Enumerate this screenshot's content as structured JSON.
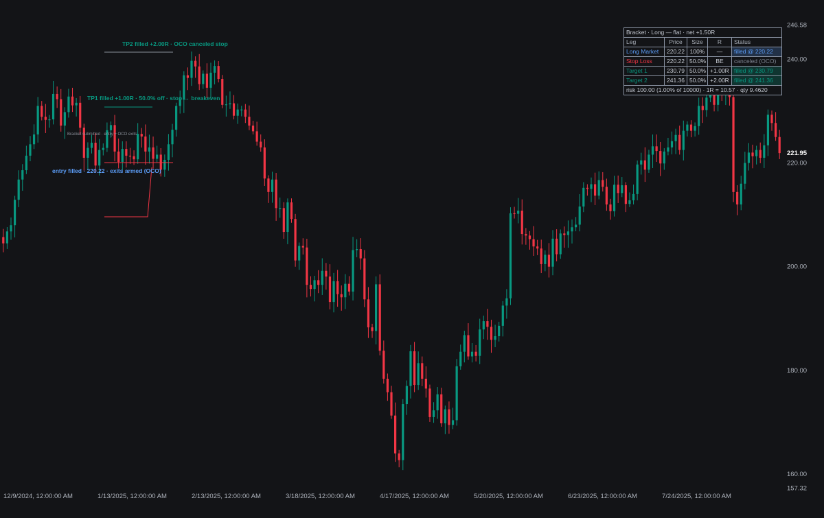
{
  "colors": {
    "background": "#131417",
    "up": "#089981",
    "down": "#f23645",
    "entry": "#5b9cf6",
    "text": "#b6bac2"
  },
  "annotations": {
    "tp2": "TP2 filled +2.00R · OCO canceled stop",
    "tp1": "TP1 filled +1.00R · 50.0% off · stop → breakeven",
    "submitted": "Bracket submitted · entry + OCO exits",
    "entry": "entry filled · 220.22 · exits armed (OCO)"
  },
  "order_table": {
    "title": "Bracket · Long — flat · net +1.50R",
    "headers": [
      "Leg",
      "Price",
      "Size",
      "R",
      "Status"
    ],
    "rows": [
      {
        "leg": "Long Market",
        "price": "220.22",
        "size": "100%",
        "r": "—",
        "status": "filled @ 220.22",
        "kind": "market"
      },
      {
        "leg": "Stop Loss",
        "price": "220.22",
        "size": "50.0%",
        "r": "BE",
        "status": "canceled (OCO)",
        "kind": "stop"
      },
      {
        "leg": "Target 1",
        "price": "230.79",
        "size": "50.0%",
        "r": "+1.00R",
        "status": "filled @ 230.79",
        "kind": "target"
      },
      {
        "leg": "Target 2",
        "price": "241.36",
        "size": "50.0%",
        "r": "+2.00R",
        "status": "filled @ 241.36",
        "kind": "target"
      }
    ],
    "footer": "risk 100.00 (1.00% of 10000) · 1R = 10.57 · qty 9.4620"
  },
  "chart_data": {
    "type": "candlestick",
    "y_axis": {
      "ticks": [
        "246.58",
        "240.00",
        "220.00",
        "200.00",
        "180.00",
        "160.00",
        "157.32"
      ],
      "current_price": "221.95",
      "range": [
        157.32,
        246.58
      ]
    },
    "x_axis": {
      "ticks": [
        "12/9/2024, 12:00:00 AM",
        "1/13/2025, 12:00:00 AM",
        "2/13/2025, 12:00:00 AM",
        "3/18/2025, 12:00:00 AM",
        "4/17/2025, 12:00:00 AM",
        "5/20/2025, 12:00:00 AM",
        "6/23/2025, 12:00:00 AM",
        "7/24/2025, 12:00:00 AM"
      ]
    },
    "levels": {
      "entry": 220.22,
      "stop": 209.65,
      "target1": 230.79,
      "target2": 241.36
    },
    "approx_closes": [
      204.5,
      206.8,
      208.0,
      212.9,
      216.8,
      218.6,
      221.4,
      223.6,
      225.5,
      231.0,
      228.9,
      228.3,
      228.4,
      233.3,
      232.3,
      227.2,
      229.8,
      232.8,
      231.1,
      231.6,
      226.8,
      221.0,
      222.9,
      223.9,
      219.5,
      222.5,
      222.9,
      226.3,
      227.3,
      222.2,
      220.2,
      222.7,
      221.4,
      221.3,
      220.7,
      225.6,
      225.1,
      222.2,
      223.0,
      220.8,
      221.6,
      218.7,
      220.6,
      223.6,
      226.4,
      231.0,
      232.2,
      236.9,
      236.4,
      239.7,
      238.6,
      235.2,
      237.2,
      234.5,
      237.4,
      238.7,
      236.2,
      231.2,
      231.3,
      231.5,
      229.1,
      230.3,
      230.3,
      228.9,
      227.2,
      226.1,
      224.1,
      223.0,
      217.0,
      214.4,
      216.8,
      211.3,
      211.3,
      206.7,
      212.4,
      209.2,
      201.2,
      204.0,
      203.7,
      196.5,
      195.7,
      197.4,
      196.5,
      199.2,
      198.1,
      193.2,
      197.2,
      194.7,
      194.1,
      196.7,
      195.2,
      203.2,
      203.4,
      201.6,
      193.7,
      188.3,
      187.6,
      196.6,
      183.8,
      178.4,
      175.8,
      171.3,
      164.0,
      162.7,
      173.5,
      177.0,
      183.7,
      177.2,
      181.4,
      178.4,
      176.5,
      171.0,
      172.3,
      175.4,
      169.8,
      172.5,
      169.5,
      170.4,
      180.8,
      183.6,
      186.8,
      182.7,
      183.6,
      182.8,
      187.9,
      189.5,
      188.4,
      185.9,
      186.6,
      188.6,
      192.5,
      193.9,
      210.3,
      210.2,
      210.8,
      206.3,
      206.0,
      205.3,
      203.9,
      203.5,
      200.5,
      202.3,
      200.0,
      205.4,
      202.4,
      206.4,
      206.1,
      206.8,
      207.6,
      208.1,
      211.6,
      215.2,
      215.0,
      215.9,
      213.7,
      216.7,
      215.4,
      212.0,
      210.7,
      215.8,
      214.2,
      215.7,
      212.1,
      212.8,
      214.0,
      219.7,
      220.5,
      218.7,
      221.6,
      223.2,
      222.3,
      219.9,
      222.2,
      223.0,
      224.2,
      225.4,
      222.5,
      226.2,
      227.4,
      226.2,
      227.1,
      231.0,
      230.2,
      232.6,
      233.8,
      231.2,
      236.2,
      233.4,
      234.0,
      232.7,
      214.4,
      212.0,
      216.0,
      220.0,
      222.0,
      221.3,
      222.5,
      221.0,
      223.4,
      229.3,
      227.7,
      225.0,
      221.9
    ]
  }
}
